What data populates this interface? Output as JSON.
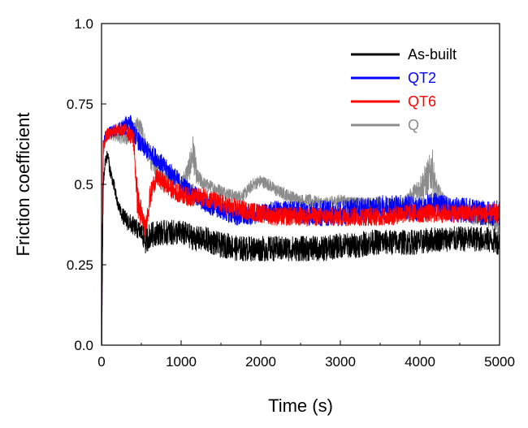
{
  "chart_data": {
    "type": "line",
    "title": "",
    "xlabel": "Time (s)",
    "ylabel": "Friction coefficient",
    "xlim": [
      0,
      5000
    ],
    "ylim": [
      0.0,
      1.0
    ],
    "x_ticks": [
      0,
      1000,
      2000,
      3000,
      4000,
      5000
    ],
    "x_tick_labels": [
      "0",
      "1000",
      "2000",
      "3000",
      "4000",
      "5000"
    ],
    "y_ticks": [
      0.0,
      0.25,
      0.5,
      0.75,
      1.0
    ],
    "y_tick_labels": [
      "0.0",
      "0.25",
      "0.5",
      "0.75",
      "1.0"
    ],
    "grid": false,
    "legend": "top-right",
    "series": [
      {
        "name": "Q",
        "color": "#8c8c8c",
        "x": [
          0,
          20,
          50,
          100,
          200,
          300,
          400,
          450,
          500,
          600,
          700,
          800,
          900,
          1000,
          1100,
          1150,
          1200,
          1300,
          1400,
          1500,
          1600,
          1700,
          1800,
          1900,
          2000,
          2100,
          2200,
          2300,
          2400,
          2500,
          2600,
          2800,
          3000,
          3200,
          3400,
          3600,
          3800,
          4000,
          4100,
          4150,
          4200,
          4300,
          4400,
          4500,
          4600,
          4700,
          4800,
          4900,
          5000
        ],
        "values": [
          0.0,
          0.6,
          0.64,
          0.66,
          0.65,
          0.64,
          0.66,
          0.68,
          0.67,
          0.58,
          0.54,
          0.52,
          0.51,
          0.5,
          0.55,
          0.6,
          0.52,
          0.5,
          0.49,
          0.48,
          0.47,
          0.46,
          0.47,
          0.5,
          0.51,
          0.5,
          0.48,
          0.47,
          0.46,
          0.45,
          0.45,
          0.44,
          0.45,
          0.44,
          0.44,
          0.44,
          0.44,
          0.49,
          0.52,
          0.55,
          0.48,
          0.44,
          0.42,
          0.42,
          0.41,
          0.4,
          0.4,
          0.39,
          0.37
        ],
        "noise": [
          0,
          0.02,
          0.02,
          0.02,
          0.02,
          0.02,
          0.03,
          0.03,
          0.03,
          0.03,
          0.02,
          0.02,
          0.02,
          0.02,
          0.04,
          0.06,
          0.03,
          0.02,
          0.02,
          0.02,
          0.02,
          0.02,
          0.02,
          0.02,
          0.02,
          0.02,
          0.02,
          0.02,
          0.02,
          0.02,
          0.02,
          0.02,
          0.02,
          0.02,
          0.02,
          0.02,
          0.02,
          0.04,
          0.06,
          0.07,
          0.04,
          0.03,
          0.03,
          0.03,
          0.03,
          0.03,
          0.03,
          0.03,
          0.03
        ]
      },
      {
        "name": "QT2",
        "color": "#0000ff",
        "x": [
          0,
          20,
          50,
          100,
          200,
          300,
          350,
          400,
          500,
          600,
          700,
          800,
          900,
          1000,
          1100,
          1200,
          1300,
          1400,
          1500,
          1600,
          1700,
          1800,
          2000,
          2200,
          2400,
          2600,
          2800,
          3000,
          3200,
          3400,
          3600,
          3800,
          4000,
          4200,
          4400,
          4600,
          4800,
          5000
        ],
        "values": [
          0.0,
          0.62,
          0.65,
          0.66,
          0.67,
          0.68,
          0.7,
          0.66,
          0.62,
          0.6,
          0.58,
          0.55,
          0.53,
          0.5,
          0.48,
          0.46,
          0.44,
          0.43,
          0.42,
          0.41,
          0.4,
          0.4,
          0.41,
          0.42,
          0.42,
          0.41,
          0.41,
          0.41,
          0.42,
          0.42,
          0.43,
          0.43,
          0.42,
          0.44,
          0.42,
          0.42,
          0.41,
          0.41
        ],
        "noise": [
          0,
          0.02,
          0.02,
          0.02,
          0.02,
          0.03,
          0.03,
          0.03,
          0.03,
          0.03,
          0.03,
          0.03,
          0.03,
          0.03,
          0.03,
          0.03,
          0.03,
          0.03,
          0.03,
          0.03,
          0.03,
          0.03,
          0.03,
          0.03,
          0.03,
          0.04,
          0.04,
          0.04,
          0.04,
          0.04,
          0.04,
          0.04,
          0.04,
          0.04,
          0.04,
          0.04,
          0.04,
          0.04
        ]
      },
      {
        "name": "QT6",
        "color": "#ff0000",
        "x": [
          0,
          20,
          50,
          100,
          200,
          300,
          400,
          450,
          500,
          550,
          600,
          650,
          700,
          800,
          900,
          1000,
          1100,
          1200,
          1300,
          1400,
          1500,
          1600,
          1800,
          2000,
          2200,
          2400,
          2600,
          2800,
          3000,
          3200,
          3400,
          3600,
          3800,
          4000,
          4200,
          4400,
          4600,
          4800,
          5000
        ],
        "values": [
          0.0,
          0.62,
          0.65,
          0.66,
          0.67,
          0.67,
          0.64,
          0.45,
          0.4,
          0.36,
          0.45,
          0.5,
          0.52,
          0.5,
          0.48,
          0.47,
          0.46,
          0.46,
          0.46,
          0.45,
          0.44,
          0.43,
          0.42,
          0.41,
          0.4,
          0.4,
          0.4,
          0.4,
          0.4,
          0.4,
          0.4,
          0.4,
          0.41,
          0.41,
          0.41,
          0.41,
          0.41,
          0.41,
          0.41
        ],
        "noise": [
          0,
          0.02,
          0.02,
          0.02,
          0.02,
          0.02,
          0.03,
          0.05,
          0.05,
          0.03,
          0.04,
          0.03,
          0.03,
          0.03,
          0.03,
          0.03,
          0.03,
          0.03,
          0.03,
          0.03,
          0.03,
          0.03,
          0.03,
          0.03,
          0.03,
          0.03,
          0.03,
          0.03,
          0.03,
          0.03,
          0.03,
          0.03,
          0.03,
          0.03,
          0.03,
          0.03,
          0.03,
          0.03,
          0.03
        ]
      },
      {
        "name": "As-built",
        "color": "#000000",
        "x": [
          0,
          20,
          50,
          80,
          100,
          150,
          200,
          250,
          300,
          400,
          500,
          550,
          600,
          700,
          800,
          900,
          1000,
          1100,
          1200,
          1300,
          1400,
          1500,
          1600,
          1700,
          1800,
          1900,
          2000,
          2200,
          2400,
          2600,
          2800,
          3000,
          3200,
          3400,
          3600,
          3800,
          4000,
          4200,
          4400,
          4600,
          4800,
          5000
        ],
        "values": [
          0.0,
          0.5,
          0.58,
          0.59,
          0.55,
          0.5,
          0.44,
          0.41,
          0.39,
          0.37,
          0.35,
          0.32,
          0.34,
          0.35,
          0.35,
          0.35,
          0.35,
          0.34,
          0.33,
          0.33,
          0.32,
          0.31,
          0.31,
          0.3,
          0.3,
          0.3,
          0.3,
          0.3,
          0.3,
          0.3,
          0.3,
          0.31,
          0.31,
          0.32,
          0.32,
          0.32,
          0.32,
          0.33,
          0.33,
          0.33,
          0.33,
          0.32
        ],
        "noise": [
          0,
          0.02,
          0.02,
          0.02,
          0.02,
          0.02,
          0.02,
          0.02,
          0.03,
          0.03,
          0.03,
          0.04,
          0.04,
          0.04,
          0.04,
          0.04,
          0.04,
          0.04,
          0.04,
          0.04,
          0.04,
          0.04,
          0.04,
          0.04,
          0.04,
          0.04,
          0.04,
          0.04,
          0.04,
          0.04,
          0.04,
          0.04,
          0.04,
          0.04,
          0.04,
          0.04,
          0.04,
          0.04,
          0.04,
          0.04,
          0.04,
          0.04
        ]
      }
    ],
    "legend_order": [
      "As-built",
      "QT2",
      "QT6",
      "Q"
    ]
  }
}
